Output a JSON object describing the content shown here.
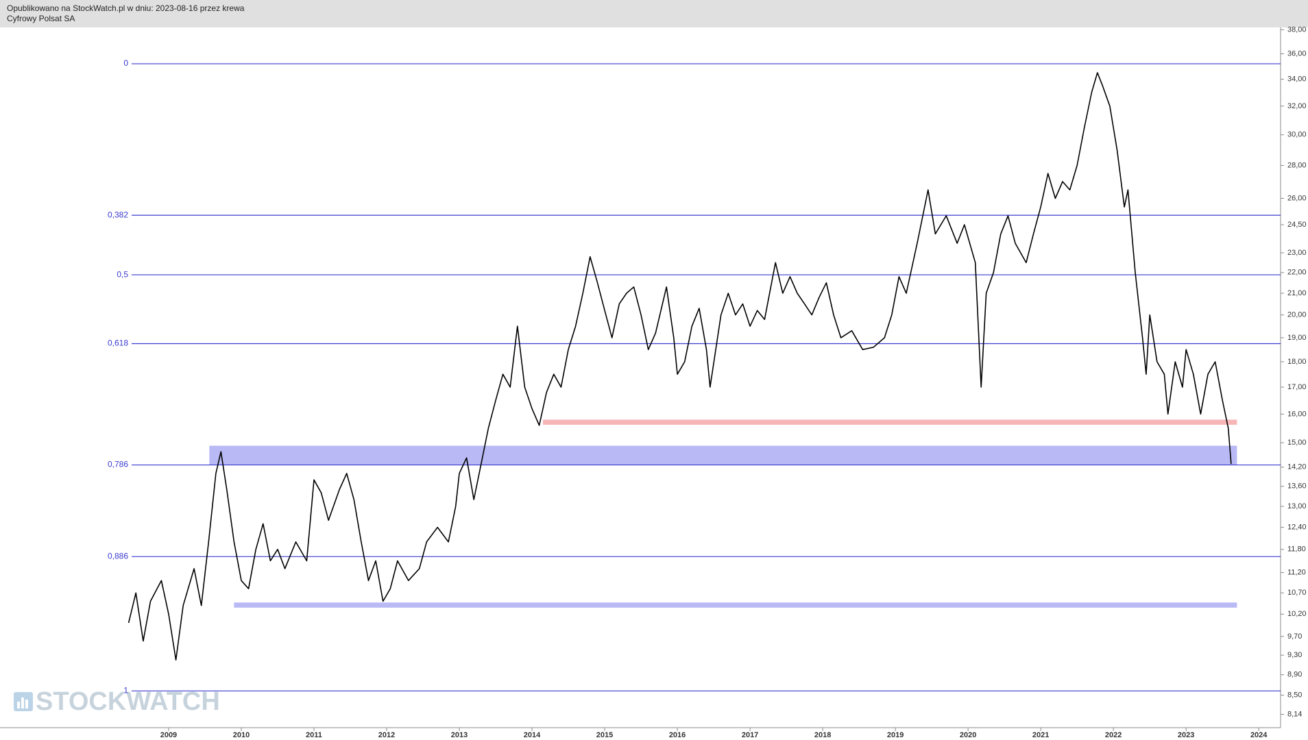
{
  "chart_data": {
    "type": "line",
    "subtitle": "Opublikowano na StockWatch.pl w dniu: 2023-08-16 przez krewa",
    "title": "Cyfrowy Polsat SA",
    "watermark": "STOCKWATCH",
    "color": "#000000",
    "log_scale": true,
    "x": [
      2008.45,
      2008.55,
      2008.65,
      2008.75,
      2008.9,
      2009.0,
      2009.1,
      2009.2,
      2009.35,
      2009.45,
      2009.55,
      2009.65,
      2009.72,
      2009.8,
      2009.9,
      2010.0,
      2010.1,
      2010.2,
      2010.3,
      2010.4,
      2010.5,
      2010.6,
      2010.75,
      2010.9,
      2011.0,
      2011.1,
      2011.2,
      2011.35,
      2011.45,
      2011.55,
      2011.65,
      2011.75,
      2011.85,
      2011.95,
      2012.05,
      2012.15,
      2012.3,
      2012.45,
      2012.55,
      2012.7,
      2012.85,
      2012.95,
      2013.0,
      2013.1,
      2013.2,
      2013.3,
      2013.4,
      2013.5,
      2013.6,
      2013.7,
      2013.8,
      2013.9,
      2014.0,
      2014.1,
      2014.2,
      2014.3,
      2014.4,
      2014.5,
      2014.6,
      2014.7,
      2014.8,
      2014.9,
      2015.0,
      2015.1,
      2015.2,
      2015.3,
      2015.4,
      2015.5,
      2015.6,
      2015.7,
      2015.85,
      2015.95,
      2016.0,
      2016.1,
      2016.2,
      2016.3,
      2016.4,
      2016.45,
      2016.6,
      2016.7,
      2016.8,
      2016.9,
      2017.0,
      2017.1,
      2017.2,
      2017.35,
      2017.45,
      2017.55,
      2017.65,
      2017.75,
      2017.85,
      2017.95,
      2018.05,
      2018.15,
      2018.25,
      2018.4,
      2018.55,
      2018.7,
      2018.85,
      2018.95,
      2019.05,
      2019.15,
      2019.3,
      2019.45,
      2019.55,
      2019.7,
      2019.85,
      2019.95,
      2020.1,
      2020.18,
      2020.25,
      2020.35,
      2020.45,
      2020.55,
      2020.65,
      2020.8,
      2020.9,
      2021.0,
      2021.1,
      2021.2,
      2021.3,
      2021.4,
      2021.5,
      2021.6,
      2021.7,
      2021.78,
      2021.85,
      2021.95,
      2022.05,
      2022.15,
      2022.2,
      2022.3,
      2022.4,
      2022.45,
      2022.5,
      2022.6,
      2022.7,
      2022.75,
      2022.85,
      2022.95,
      2023.0,
      2023.1,
      2023.2,
      2023.3,
      2023.4,
      2023.5,
      2023.58,
      2023.62
    ],
    "values": [
      10.0,
      10.7,
      9.6,
      10.5,
      11.0,
      10.2,
      9.2,
      10.4,
      11.3,
      10.4,
      12.0,
      14.0,
      14.7,
      13.5,
      12.0,
      11.0,
      10.8,
      11.8,
      12.5,
      11.5,
      11.8,
      11.3,
      12.0,
      11.5,
      13.8,
      13.4,
      12.6,
      13.5,
      14.0,
      13.2,
      12.0,
      11.0,
      11.5,
      10.5,
      10.8,
      11.5,
      11.0,
      11.3,
      12.0,
      12.4,
      12.0,
      13.0,
      14.0,
      14.5,
      13.2,
      14.3,
      15.5,
      16.5,
      17.5,
      17.0,
      19.5,
      17.0,
      16.2,
      15.6,
      16.8,
      17.5,
      17.0,
      18.5,
      19.5,
      21.0,
      22.8,
      21.5,
      20.2,
      19.0,
      20.5,
      21.0,
      21.3,
      20.0,
      18.5,
      19.2,
      21.3,
      19.0,
      17.5,
      18.0,
      19.5,
      20.3,
      18.5,
      17.0,
      20.0,
      21.0,
      20.0,
      20.5,
      19.5,
      20.2,
      19.8,
      22.5,
      21.0,
      21.8,
      21.0,
      20.5,
      20.0,
      20.8,
      21.5,
      20.0,
      19.0,
      19.3,
      18.5,
      18.6,
      19.0,
      20.0,
      21.8,
      21.0,
      23.5,
      26.5,
      24.0,
      25.0,
      23.5,
      24.5,
      22.5,
      17.0,
      21.0,
      22.0,
      24.0,
      25.0,
      23.5,
      22.5,
      24.0,
      25.5,
      27.5,
      26.0,
      27.0,
      26.5,
      28.0,
      30.5,
      33.0,
      34.5,
      33.5,
      32.0,
      29.0,
      25.5,
      26.5,
      22.0,
      19.0,
      17.5,
      20.0,
      18.0,
      17.5,
      16.0,
      18.0,
      17.0,
      18.5,
      17.5,
      16.0,
      17.5,
      18.0,
      16.5,
      15.5,
      14.3
    ],
    "xlim": [
      2006.68,
      2024.3
    ],
    "xticks": [
      2009,
      2010,
      2011,
      2012,
      2013,
      2014,
      2015,
      2016,
      2017,
      2018,
      2019,
      2020,
      2021,
      2022,
      2023,
      2024
    ],
    "ylim": [
      7.9,
      38.2
    ],
    "yticks": [
      {
        "value": 38,
        "label": "38,00"
      },
      {
        "value": 36,
        "label": "36,00"
      },
      {
        "value": 34,
        "label": "34,00"
      },
      {
        "value": 32,
        "label": "32,00"
      },
      {
        "value": 30,
        "label": "30,00"
      },
      {
        "value": 28,
        "label": "28,00"
      },
      {
        "value": 26,
        "label": "26,00"
      },
      {
        "value": 24.5,
        "label": "24,50"
      },
      {
        "value": 23,
        "label": "23,00"
      },
      {
        "value": 22,
        "label": "22,00"
      },
      {
        "value": 21,
        "label": "21,00"
      },
      {
        "value": 20,
        "label": "20,00"
      },
      {
        "value": 19,
        "label": "19,00"
      },
      {
        "value": 18,
        "label": "18,00"
      },
      {
        "value": 17,
        "label": "17,00"
      },
      {
        "value": 16,
        "label": "16,00"
      },
      {
        "value": 15,
        "label": "15,00"
      },
      {
        "value": 14.2,
        "label": "14,20"
      },
      {
        "value": 13.6,
        "label": "13,60"
      },
      {
        "value": 13,
        "label": "13,00"
      },
      {
        "value": 12.4,
        "label": "12,40"
      },
      {
        "value": 11.8,
        "label": "11,80"
      },
      {
        "value": 11.2,
        "label": "11,20"
      },
      {
        "value": 10.7,
        "label": "10,70"
      },
      {
        "value": 10.2,
        "label": "10,20"
      },
      {
        "value": 9.7,
        "label": "9,70"
      },
      {
        "value": 9.3,
        "label": "9,30"
      },
      {
        "value": 8.9,
        "label": "8,90"
      },
      {
        "value": 8.5,
        "label": "8,50"
      },
      {
        "value": 8.14,
        "label": "8,14"
      }
    ],
    "levels_color": "#3a3ad0",
    "levels": [
      {
        "value": 35.2,
        "label": "0"
      },
      {
        "value": 25.03,
        "label": "0,382"
      },
      {
        "value": 21.89,
        "label": "0,5"
      },
      {
        "value": 18.75,
        "label": "0,618"
      },
      {
        "value": 14.27,
        "label": "0,786"
      },
      {
        "value": 11.61,
        "label": "0,886"
      },
      {
        "value": 8.58,
        "label": "1"
      }
    ],
    "zones": [
      {
        "from": 14.27,
        "to": 14.9,
        "x": [
          2009.56,
          2023.7
        ],
        "color": "#b9b9f5"
      },
      {
        "from": 15.62,
        "to": 15.8,
        "x": [
          2014.15,
          2023.7
        ],
        "color": "#f7b6b6"
      },
      {
        "from": 10.35,
        "to": 10.47,
        "x": [
          2009.9,
          2023.7
        ],
        "color": "#b9b9f5"
      }
    ]
  }
}
